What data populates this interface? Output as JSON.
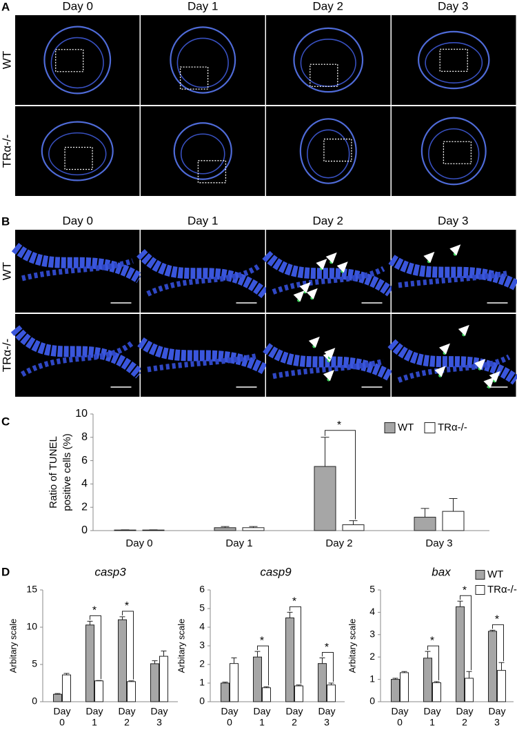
{
  "panels": {
    "A": {
      "label": "A",
      "columns": [
        "Day 0",
        "Day 1",
        "Day 2",
        "Day 3"
      ],
      "rows": [
        "WT",
        "TRα-/-"
      ]
    },
    "B": {
      "label": "B",
      "columns": [
        "Day 0",
        "Day 1",
        "Day 2",
        "Day 3"
      ],
      "rows": [
        "WT",
        "TRα-/-"
      ]
    }
  },
  "chart_data": [
    {
      "type": "bar",
      "panel_label": "C",
      "y_label": [
        "Ratio of TUNEL",
        "positive cells (%)"
      ],
      "categories": [
        "Day 0",
        "Day 1",
        "Day 2",
        "Day 3"
      ],
      "series": [
        {
          "name": "WT",
          "color": "#a6a6a6",
          "values": [
            0.05,
            0.25,
            5.5,
            1.15
          ],
          "errors": [
            0.02,
            0.1,
            2.5,
            0.75
          ]
        },
        {
          "name": "TRα-/-",
          "color": "#ffffff",
          "values": [
            0.05,
            0.25,
            0.5,
            1.65
          ],
          "errors": [
            0.02,
            0.1,
            0.35,
            1.1
          ]
        }
      ],
      "significance": [
        null,
        null,
        "*",
        null
      ],
      "ylim": [
        0,
        10
      ],
      "yticks": [
        0,
        2,
        4,
        6,
        8,
        10
      ],
      "legend": "top-right"
    },
    {
      "type": "bar",
      "panel_label": "D",
      "title": "casp3",
      "y_label": "Arbitary scale",
      "categories": [
        [
          "Day",
          "0"
        ],
        [
          "Day",
          "1"
        ],
        [
          "Day",
          "2"
        ],
        [
          "Day",
          "3"
        ]
      ],
      "series": [
        {
          "color": "#a6a6a6",
          "values": [
            1.0,
            10.3,
            11.0,
            5.1
          ],
          "errors": [
            0.1,
            0.5,
            0.4,
            0.4
          ]
        },
        {
          "color": "#ffffff",
          "values": [
            3.6,
            2.8,
            2.7,
            6.1
          ],
          "errors": [
            0.2,
            0.05,
            0.1,
            0.7
          ]
        }
      ],
      "significance": [
        null,
        "*",
        "*",
        null
      ],
      "ylim": [
        0,
        15
      ],
      "yticks": [
        0,
        5,
        10,
        15
      ]
    },
    {
      "type": "bar",
      "title": "casp9",
      "y_label": "Arbitary scale",
      "categories": [
        [
          "Day",
          "0"
        ],
        [
          "Day",
          "1"
        ],
        [
          "Day",
          "2"
        ],
        [
          "Day",
          "3"
        ]
      ],
      "series": [
        {
          "color": "#a6a6a6",
          "values": [
            1.0,
            2.4,
            4.5,
            2.05
          ],
          "errors": [
            0.05,
            0.3,
            0.3,
            0.3
          ]
        },
        {
          "color": "#ffffff",
          "values": [
            2.05,
            0.75,
            0.85,
            0.9
          ],
          "errors": [
            0.3,
            0.05,
            0.05,
            0.1
          ]
        }
      ],
      "significance": [
        null,
        "*",
        "*",
        "*"
      ],
      "ylim": [
        0,
        6
      ],
      "yticks": [
        0,
        1,
        2,
        3,
        4,
        5,
        6
      ]
    },
    {
      "type": "bar",
      "title": "bax",
      "y_label": "Arbitary scale",
      "categories": [
        [
          "Day",
          "0"
        ],
        [
          "Day",
          "1"
        ],
        [
          "Day",
          "2"
        ],
        [
          "Day",
          "3"
        ]
      ],
      "series": [
        {
          "name": "WT",
          "color": "#a6a6a6",
          "values": [
            1.0,
            1.95,
            4.25,
            3.15
          ],
          "errors": [
            0.05,
            0.3,
            0.25,
            0.05
          ]
        },
        {
          "name": "TRα-/-",
          "color": "#ffffff",
          "values": [
            1.3,
            0.85,
            1.05,
            1.4
          ],
          "errors": [
            0.05,
            0.05,
            0.3,
            0.35
          ]
        }
      ],
      "significance": [
        null,
        "*",
        "*",
        "*"
      ],
      "ylim": [
        0,
        5
      ],
      "yticks": [
        0,
        1,
        2,
        3,
        4,
        5
      ],
      "legend": "top-right"
    }
  ]
}
